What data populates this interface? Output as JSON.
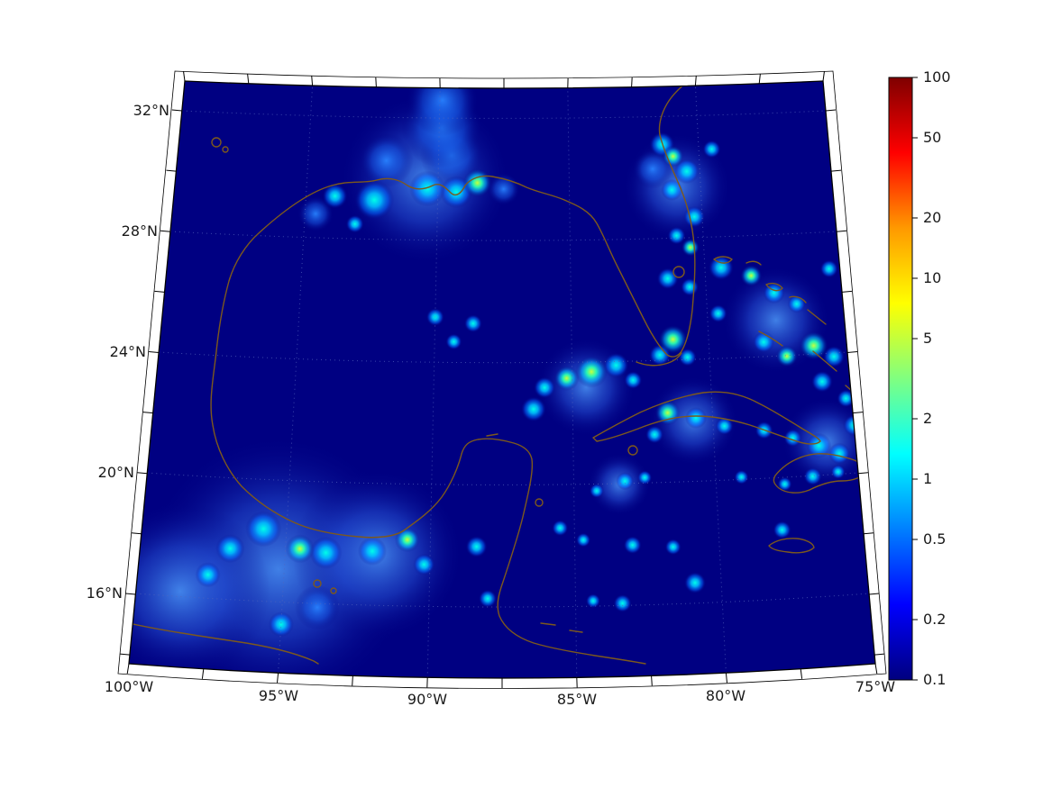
{
  "figure": {
    "bg": "#ffffff",
    "map_bg": "#000082",
    "coast_color": "#7d591d",
    "frame_color": "#000000",
    "grid_color": "#5566bb"
  },
  "axes": {
    "lat_ticks": [
      {
        "label": "32°N",
        "lat": 32
      },
      {
        "label": "28°N",
        "lat": 28
      },
      {
        "label": "24°N",
        "lat": 24
      },
      {
        "label": "20°N",
        "lat": 20
      },
      {
        "label": "16°N",
        "lat": 16
      }
    ],
    "lon_ticks": [
      {
        "label": "100°W",
        "lon": -100
      },
      {
        "label": "95°W",
        "lon": -95
      },
      {
        "label": "90°W",
        "lon": -90
      },
      {
        "label": "85°W",
        "lon": -85
      },
      {
        "label": "80°W",
        "lon": -80
      },
      {
        "label": "75°W",
        "lon": -75
      }
    ]
  },
  "colorbar": {
    "scale": "log",
    "min": 0.1,
    "max": 100,
    "colormap": "jet",
    "tick_labels": [
      "100",
      "50",
      "20",
      "10",
      "5",
      "2",
      "1",
      "0.5",
      "0.2",
      "0.1"
    ]
  },
  "chart_data": {
    "type": "heatmap",
    "projection": "conic (Lambert-like), Gulf of Mexico and Caribbean region",
    "lon_range": [
      -100,
      -75
    ],
    "lat_range": [
      13.7,
      33.0
    ],
    "value_scale": "log10",
    "value_range": [
      0.1,
      100
    ],
    "colormap": "jet",
    "background_value": 0.1,
    "hotspots": [
      {
        "lon": -90.5,
        "lat": 30.0,
        "value": 0.35,
        "r": 95
      },
      {
        "lon": -95.2,
        "lat": 17.1,
        "value": 0.4,
        "r": 150
      },
      {
        "lon": -98.5,
        "lat": 16.2,
        "value": 0.35,
        "r": 100
      },
      {
        "lon": -91.8,
        "lat": 17.7,
        "value": 0.4,
        "r": 95
      },
      {
        "lon": -80.9,
        "lat": 29.7,
        "value": 0.3,
        "r": 60
      },
      {
        "lon": -77.5,
        "lat": 25.2,
        "value": 0.3,
        "r": 60
      },
      {
        "lon": -84.5,
        "lat": 23.2,
        "value": 0.35,
        "r": 55
      },
      {
        "lon": -80.7,
        "lat": 22.0,
        "value": 0.35,
        "r": 50
      },
      {
        "lon": -76.0,
        "lat": 21.1,
        "value": 0.35,
        "r": 50
      },
      {
        "lon": -83.4,
        "lat": 20.0,
        "value": 0.3,
        "r": 35
      },
      {
        "lon": -92.0,
        "lat": 30.6,
        "value": 0.5,
        "r": 30
      },
      {
        "lon": -89.5,
        "lat": 30.8,
        "value": 0.5,
        "r": 35
      },
      {
        "lon": -87.5,
        "lat": 29.7,
        "value": 0.6,
        "r": 18
      },
      {
        "lon": -94.6,
        "lat": 28.8,
        "value": 0.5,
        "r": 20
      },
      {
        "lon": -81.8,
        "lat": 30.3,
        "value": 0.5,
        "r": 22
      },
      {
        "lon": -89.9,
        "lat": 31.7,
        "value": 0.5,
        "r": 45
      },
      {
        "lon": -89.9,
        "lat": 32.6,
        "value": 0.45,
        "r": 40
      },
      {
        "lon": -93.8,
        "lat": 15.9,
        "value": 0.6,
        "r": 25
      },
      {
        "lon": -92.4,
        "lat": 29.3,
        "value": 1.5,
        "r": 22
      },
      {
        "lon": -93.9,
        "lat": 29.4,
        "value": 1.2,
        "r": 14
      },
      {
        "lon": -89.3,
        "lat": 29.6,
        "value": 1.5,
        "r": 18
      },
      {
        "lon": -90.4,
        "lat": 29.7,
        "value": 1.5,
        "r": 20
      },
      {
        "lon": -93.1,
        "lat": 28.5,
        "value": 1.0,
        "r": 10
      },
      {
        "lon": -81.4,
        "lat": 31.1,
        "value": 1.5,
        "r": 14
      },
      {
        "lon": -80.5,
        "lat": 30.2,
        "value": 1.5,
        "r": 14
      },
      {
        "lon": -81.1,
        "lat": 29.6,
        "value": 1.2,
        "r": 12
      },
      {
        "lon": -79.5,
        "lat": 30.9,
        "value": 1.2,
        "r": 10
      },
      {
        "lon": -80.3,
        "lat": 28.7,
        "value": 1.2,
        "r": 12
      },
      {
        "lon": -81.0,
        "lat": 28.1,
        "value": 1.0,
        "r": 10
      },
      {
        "lon": -81.4,
        "lat": 26.7,
        "value": 1.2,
        "r": 12
      },
      {
        "lon": -80.6,
        "lat": 26.4,
        "value": 1.0,
        "r": 10
      },
      {
        "lon": -81.8,
        "lat": 24.2,
        "value": 1.2,
        "r": 12
      },
      {
        "lon": -80.8,
        "lat": 24.1,
        "value": 1.0,
        "r": 10
      },
      {
        "lon": -79.4,
        "lat": 27.0,
        "value": 1.3,
        "r": 14
      },
      {
        "lon": -77.5,
        "lat": 26.1,
        "value": 1.2,
        "r": 12
      },
      {
        "lon": -76.7,
        "lat": 25.7,
        "value": 1.0,
        "r": 10
      },
      {
        "lon": -75.5,
        "lat": 23.9,
        "value": 1.2,
        "r": 12
      },
      {
        "lon": -78.0,
        "lat": 24.5,
        "value": 1.2,
        "r": 12
      },
      {
        "lon": -76.0,
        "lat": 23.1,
        "value": 1.2,
        "r": 12
      },
      {
        "lon": -75.2,
        "lat": 22.5,
        "value": 1.0,
        "r": 10
      },
      {
        "lon": -79.6,
        "lat": 25.5,
        "value": 1.0,
        "r": 10
      },
      {
        "lon": -75.4,
        "lat": 26.8,
        "value": 1.0,
        "r": 10
      },
      {
        "lon": -86.0,
        "lat": 23.2,
        "value": 1.3,
        "r": 12
      },
      {
        "lon": -83.4,
        "lat": 23.9,
        "value": 1.3,
        "r": 14
      },
      {
        "lon": -82.8,
        "lat": 23.4,
        "value": 1.0,
        "r": 10
      },
      {
        "lon": -86.4,
        "lat": 22.5,
        "value": 1.3,
        "r": 14
      },
      {
        "lon": -88.6,
        "lat": 25.3,
        "value": 1.0,
        "r": 10
      },
      {
        "lon": -90.0,
        "lat": 25.5,
        "value": 1.0,
        "r": 10
      },
      {
        "lon": -89.3,
        "lat": 24.7,
        "value": 0.9,
        "r": 9
      },
      {
        "lon": -80.6,
        "lat": 22.1,
        "value": 1.3,
        "r": 12
      },
      {
        "lon": -79.6,
        "lat": 21.8,
        "value": 1.0,
        "r": 10
      },
      {
        "lon": -82.1,
        "lat": 21.6,
        "value": 1.0,
        "r": 10
      },
      {
        "lon": -78.2,
        "lat": 21.6,
        "value": 1.0,
        "r": 10
      },
      {
        "lon": -77.2,
        "lat": 21.3,
        "value": 1.0,
        "r": 10
      },
      {
        "lon": -76.3,
        "lat": 21.0,
        "value": 1.4,
        "r": 14
      },
      {
        "lon": -75.6,
        "lat": 20.7,
        "value": 1.2,
        "r": 12
      },
      {
        "lon": -75.0,
        "lat": 21.6,
        "value": 1.2,
        "r": 12
      },
      {
        "lon": -76.6,
        "lat": 20.0,
        "value": 1.0,
        "r": 10
      },
      {
        "lon": -77.6,
        "lat": 19.8,
        "value": 0.9,
        "r": 8
      },
      {
        "lon": -75.7,
        "lat": 20.1,
        "value": 0.9,
        "r": 8
      },
      {
        "lon": -83.2,
        "lat": 20.1,
        "value": 1.0,
        "r": 10
      },
      {
        "lon": -82.5,
        "lat": 20.2,
        "value": 0.9,
        "r": 8
      },
      {
        "lon": -84.2,
        "lat": 19.8,
        "value": 0.9,
        "r": 8
      },
      {
        "lon": -85.5,
        "lat": 18.6,
        "value": 0.9,
        "r": 9
      },
      {
        "lon": -84.7,
        "lat": 18.2,
        "value": 0.9,
        "r": 8
      },
      {
        "lon": -83.0,
        "lat": 18.0,
        "value": 1.0,
        "r": 10
      },
      {
        "lon": -81.6,
        "lat": 17.9,
        "value": 0.9,
        "r": 9
      },
      {
        "lon": -80.9,
        "lat": 16.7,
        "value": 1.2,
        "r": 12
      },
      {
        "lon": -83.4,
        "lat": 16.1,
        "value": 1.0,
        "r": 10
      },
      {
        "lon": -84.4,
        "lat": 16.2,
        "value": 0.9,
        "r": 8
      },
      {
        "lon": -88.4,
        "lat": 18.0,
        "value": 1.2,
        "r": 12
      },
      {
        "lon": -88.0,
        "lat": 16.3,
        "value": 1.0,
        "r": 10
      },
      {
        "lon": -77.8,
        "lat": 18.3,
        "value": 1.0,
        "r": 10
      },
      {
        "lon": -79.1,
        "lat": 20.1,
        "value": 0.9,
        "r": 8
      },
      {
        "lon": -95.8,
        "lat": 18.4,
        "value": 1.5,
        "r": 20
      },
      {
        "lon": -93.6,
        "lat": 17.7,
        "value": 1.5,
        "r": 18
      },
      {
        "lon": -92.0,
        "lat": 17.8,
        "value": 1.4,
        "r": 16
      },
      {
        "lon": -96.9,
        "lat": 17.7,
        "value": 1.4,
        "r": 16
      },
      {
        "lon": -97.6,
        "lat": 16.8,
        "value": 1.2,
        "r": 14
      },
      {
        "lon": -95.0,
        "lat": 15.3,
        "value": 1.2,
        "r": 14
      },
      {
        "lon": -90.2,
        "lat": 17.4,
        "value": 1.1,
        "r": 12
      },
      {
        "lon": -88.5,
        "lat": 29.9,
        "value": 4.0,
        "r": 16
      },
      {
        "lon": -81.0,
        "lat": 30.7,
        "value": 3.5,
        "r": 12
      },
      {
        "lon": -80.5,
        "lat": 27.7,
        "value": 3.0,
        "r": 10
      },
      {
        "lon": -81.3,
        "lat": 24.7,
        "value": 4.0,
        "r": 16
      },
      {
        "lon": -78.3,
        "lat": 26.7,
        "value": 3.5,
        "r": 12
      },
      {
        "lon": -76.2,
        "lat": 24.3,
        "value": 4.0,
        "r": 16
      },
      {
        "lon": -77.2,
        "lat": 24.0,
        "value": 3.5,
        "r": 12
      },
      {
        "lon": -84.3,
        "lat": 23.7,
        "value": 4.0,
        "r": 18
      },
      {
        "lon": -85.2,
        "lat": 23.5,
        "value": 3.5,
        "r": 14
      },
      {
        "lon": -81.6,
        "lat": 22.3,
        "value": 3.5,
        "r": 14
      },
      {
        "lon": -94.5,
        "lat": 17.8,
        "value": 3.0,
        "r": 16
      },
      {
        "lon": -90.8,
        "lat": 18.2,
        "value": 3.0,
        "r": 14
      }
    ]
  }
}
